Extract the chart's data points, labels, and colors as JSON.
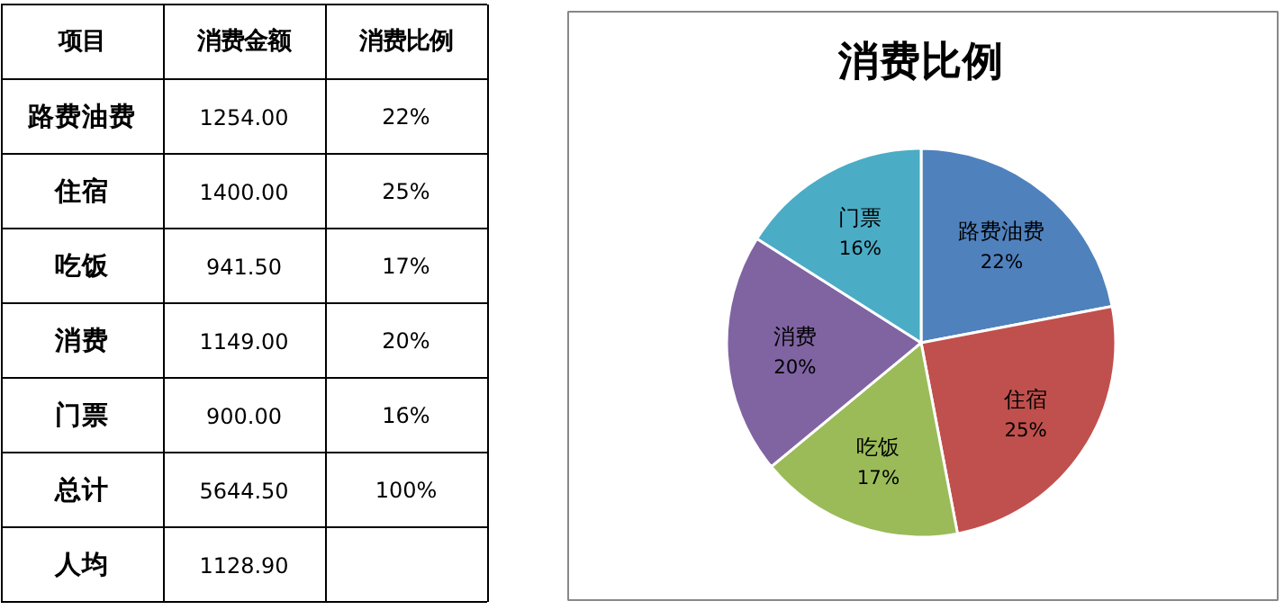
{
  "chart_data": {
    "type": "pie",
    "title": "消费比例",
    "categories": [
      "路费油费",
      "住宿",
      "吃饭",
      "消费",
      "门票"
    ],
    "values": [
      22,
      25,
      17,
      20,
      16
    ],
    "value_labels": [
      "22%",
      "25%",
      "17%",
      "20%",
      "16%"
    ],
    "colors": [
      "#4f81bd",
      "#c0504d",
      "#9bbb59",
      "#8064a2",
      "#4bacc6"
    ],
    "annotations": [
      {
        "text": "1254.00",
        "x": "路费油费"
      },
      {
        "text": "1400.00",
        "x": "住宿"
      },
      {
        "text": "941.50",
        "x": "吃饭"
      },
      {
        "text": "1149.00",
        "x": "消费"
      },
      {
        "text": "900.00",
        "x": "门票"
      },
      {
        "text": "22%",
        "x": "路费油费"
      },
      {
        "text": "25%",
        "x": "住宿"
      },
      {
        "text": "17%",
        "x": "吃饭"
      },
      {
        "text": "20%",
        "x": "消费"
      },
      {
        "text": "16%",
        "x": "门票"
      },
      "项目",
      "消费金额",
      "消费比例",
      "总计",
      "5644.50",
      "100%",
      "人均",
      "1128.90"
    ]
  }
}
